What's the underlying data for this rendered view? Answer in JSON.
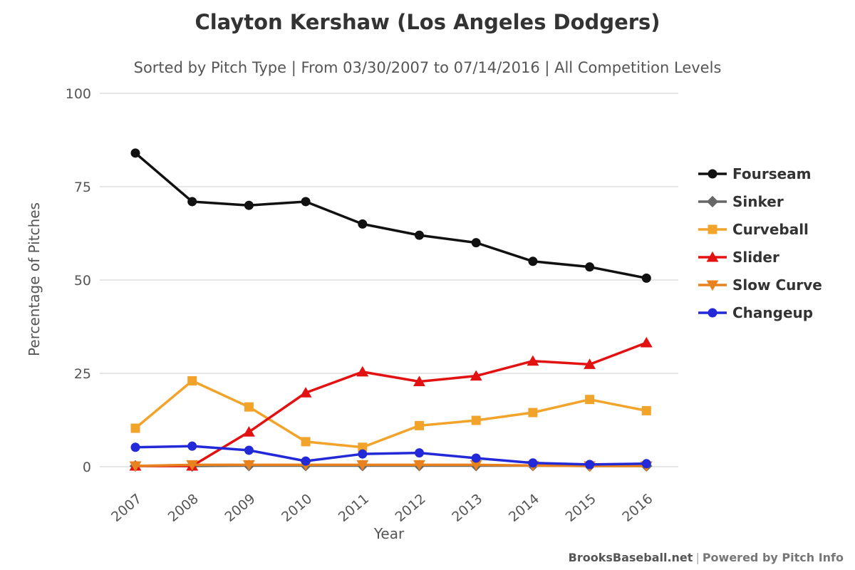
{
  "title": "Clayton Kershaw (Los Angeles Dodgers)",
  "subtitle": "Sorted by Pitch Type | From 03/30/2007 to 07/14/2016 | All Competition Levels",
  "footer": {
    "site": "BrooksBaseball.net",
    "sep": "|",
    "credit": "Powered by Pitch Info"
  },
  "chart_data": {
    "type": "line",
    "title": "Clayton Kershaw (Los Angeles Dodgers)",
    "subtitle": "Sorted by Pitch Type | From 03/30/2007 to 07/14/2016 | All Competition Levels",
    "xlabel": "Year",
    "ylabel": "Percentage of Pitches",
    "x": [
      "2007",
      "2008",
      "2009",
      "2010",
      "2011",
      "2012",
      "2013",
      "2014",
      "2015",
      "2016"
    ],
    "ylim": [
      0,
      100
    ],
    "yticks": [
      0,
      25,
      50,
      75,
      100
    ],
    "grid": true,
    "legend_position": "right",
    "series": [
      {
        "name": "Fourseam",
        "color": "#111111",
        "marker": "circle",
        "values": [
          84,
          71,
          70,
          71,
          65,
          62,
          60,
          55,
          53.5,
          50.5
        ]
      },
      {
        "name": "Sinker",
        "color": "#666666",
        "marker": "diamond",
        "values": [
          0.2,
          0.2,
          0.3,
          0.3,
          0.3,
          0.3,
          0.3,
          0.3,
          0.2,
          0.2
        ]
      },
      {
        "name": "Curveball",
        "color": "#f2a42a",
        "marker": "square",
        "values": [
          10.3,
          23,
          16,
          6.7,
          5.2,
          11,
          12.4,
          14.5,
          18,
          15
        ]
      },
      {
        "name": "Slider",
        "color": "#e31212",
        "marker": "triangle-up",
        "values": [
          0.2,
          0.2,
          9.3,
          19.8,
          25.4,
          22.8,
          24.3,
          28.3,
          27.4,
          33.2
        ]
      },
      {
        "name": "Slow Curve",
        "color": "#e8821e",
        "marker": "triangle-down",
        "values": [
          0.2,
          0.5,
          0.5,
          0.5,
          0.5,
          0.5,
          0.5,
          0.3,
          0.2,
          0.2
        ]
      },
      {
        "name": "Changeup",
        "color": "#2329d6",
        "marker": "circle",
        "values": [
          5.2,
          5.5,
          4.4,
          1.5,
          3.4,
          3.7,
          2.3,
          1.0,
          0.6,
          0.8
        ]
      }
    ]
  }
}
